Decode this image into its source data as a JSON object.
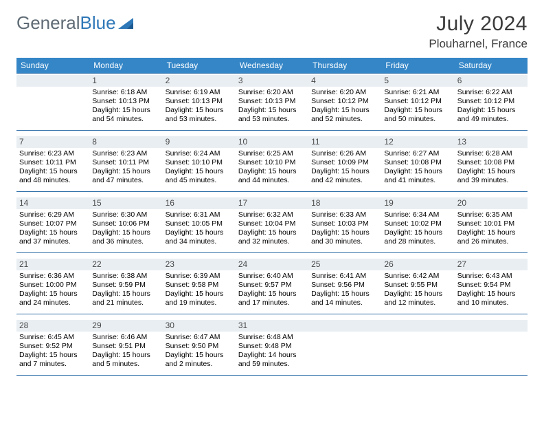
{
  "logo": {
    "part1": "General",
    "part2": "Blue"
  },
  "title": "July 2024",
  "location": "Plouharnel, France",
  "title_color": "#3b3b3b",
  "header_bg": "#3486c7",
  "header_fg": "#ffffff",
  "cell_num_bg": "#e9eef2",
  "cell_num_fg": "#4a4a4a",
  "border_color": "#2f6fa8",
  "text_color": "#000000",
  "dayHeaders": [
    "Sunday",
    "Monday",
    "Tuesday",
    "Wednesday",
    "Thursday",
    "Friday",
    "Saturday"
  ],
  "weeks": [
    [
      null,
      {
        "d": "1",
        "sr": "Sunrise: 6:18 AM",
        "ss": "Sunset: 10:13 PM",
        "dl1": "Daylight: 15 hours",
        "dl2": "and 54 minutes."
      },
      {
        "d": "2",
        "sr": "Sunrise: 6:19 AM",
        "ss": "Sunset: 10:13 PM",
        "dl1": "Daylight: 15 hours",
        "dl2": "and 53 minutes."
      },
      {
        "d": "3",
        "sr": "Sunrise: 6:20 AM",
        "ss": "Sunset: 10:13 PM",
        "dl1": "Daylight: 15 hours",
        "dl2": "and 53 minutes."
      },
      {
        "d": "4",
        "sr": "Sunrise: 6:20 AM",
        "ss": "Sunset: 10:12 PM",
        "dl1": "Daylight: 15 hours",
        "dl2": "and 52 minutes."
      },
      {
        "d": "5",
        "sr": "Sunrise: 6:21 AM",
        "ss": "Sunset: 10:12 PM",
        "dl1": "Daylight: 15 hours",
        "dl2": "and 50 minutes."
      },
      {
        "d": "6",
        "sr": "Sunrise: 6:22 AM",
        "ss": "Sunset: 10:12 PM",
        "dl1": "Daylight: 15 hours",
        "dl2": "and 49 minutes."
      }
    ],
    [
      {
        "d": "7",
        "sr": "Sunrise: 6:23 AM",
        "ss": "Sunset: 10:11 PM",
        "dl1": "Daylight: 15 hours",
        "dl2": "and 48 minutes."
      },
      {
        "d": "8",
        "sr": "Sunrise: 6:23 AM",
        "ss": "Sunset: 10:11 PM",
        "dl1": "Daylight: 15 hours",
        "dl2": "and 47 minutes."
      },
      {
        "d": "9",
        "sr": "Sunrise: 6:24 AM",
        "ss": "Sunset: 10:10 PM",
        "dl1": "Daylight: 15 hours",
        "dl2": "and 45 minutes."
      },
      {
        "d": "10",
        "sr": "Sunrise: 6:25 AM",
        "ss": "Sunset: 10:10 PM",
        "dl1": "Daylight: 15 hours",
        "dl2": "and 44 minutes."
      },
      {
        "d": "11",
        "sr": "Sunrise: 6:26 AM",
        "ss": "Sunset: 10:09 PM",
        "dl1": "Daylight: 15 hours",
        "dl2": "and 42 minutes."
      },
      {
        "d": "12",
        "sr": "Sunrise: 6:27 AM",
        "ss": "Sunset: 10:08 PM",
        "dl1": "Daylight: 15 hours",
        "dl2": "and 41 minutes."
      },
      {
        "d": "13",
        "sr": "Sunrise: 6:28 AM",
        "ss": "Sunset: 10:08 PM",
        "dl1": "Daylight: 15 hours",
        "dl2": "and 39 minutes."
      }
    ],
    [
      {
        "d": "14",
        "sr": "Sunrise: 6:29 AM",
        "ss": "Sunset: 10:07 PM",
        "dl1": "Daylight: 15 hours",
        "dl2": "and 37 minutes."
      },
      {
        "d": "15",
        "sr": "Sunrise: 6:30 AM",
        "ss": "Sunset: 10:06 PM",
        "dl1": "Daylight: 15 hours",
        "dl2": "and 36 minutes."
      },
      {
        "d": "16",
        "sr": "Sunrise: 6:31 AM",
        "ss": "Sunset: 10:05 PM",
        "dl1": "Daylight: 15 hours",
        "dl2": "and 34 minutes."
      },
      {
        "d": "17",
        "sr": "Sunrise: 6:32 AM",
        "ss": "Sunset: 10:04 PM",
        "dl1": "Daylight: 15 hours",
        "dl2": "and 32 minutes."
      },
      {
        "d": "18",
        "sr": "Sunrise: 6:33 AM",
        "ss": "Sunset: 10:03 PM",
        "dl1": "Daylight: 15 hours",
        "dl2": "and 30 minutes."
      },
      {
        "d": "19",
        "sr": "Sunrise: 6:34 AM",
        "ss": "Sunset: 10:02 PM",
        "dl1": "Daylight: 15 hours",
        "dl2": "and 28 minutes."
      },
      {
        "d": "20",
        "sr": "Sunrise: 6:35 AM",
        "ss": "Sunset: 10:01 PM",
        "dl1": "Daylight: 15 hours",
        "dl2": "and 26 minutes."
      }
    ],
    [
      {
        "d": "21",
        "sr": "Sunrise: 6:36 AM",
        "ss": "Sunset: 10:00 PM",
        "dl1": "Daylight: 15 hours",
        "dl2": "and 24 minutes."
      },
      {
        "d": "22",
        "sr": "Sunrise: 6:38 AM",
        "ss": "Sunset: 9:59 PM",
        "dl1": "Daylight: 15 hours",
        "dl2": "and 21 minutes."
      },
      {
        "d": "23",
        "sr": "Sunrise: 6:39 AM",
        "ss": "Sunset: 9:58 PM",
        "dl1": "Daylight: 15 hours",
        "dl2": "and 19 minutes."
      },
      {
        "d": "24",
        "sr": "Sunrise: 6:40 AM",
        "ss": "Sunset: 9:57 PM",
        "dl1": "Daylight: 15 hours",
        "dl2": "and 17 minutes."
      },
      {
        "d": "25",
        "sr": "Sunrise: 6:41 AM",
        "ss": "Sunset: 9:56 PM",
        "dl1": "Daylight: 15 hours",
        "dl2": "and 14 minutes."
      },
      {
        "d": "26",
        "sr": "Sunrise: 6:42 AM",
        "ss": "Sunset: 9:55 PM",
        "dl1": "Daylight: 15 hours",
        "dl2": "and 12 minutes."
      },
      {
        "d": "27",
        "sr": "Sunrise: 6:43 AM",
        "ss": "Sunset: 9:54 PM",
        "dl1": "Daylight: 15 hours",
        "dl2": "and 10 minutes."
      }
    ],
    [
      {
        "d": "28",
        "sr": "Sunrise: 6:45 AM",
        "ss": "Sunset: 9:52 PM",
        "dl1": "Daylight: 15 hours",
        "dl2": "and 7 minutes."
      },
      {
        "d": "29",
        "sr": "Sunrise: 6:46 AM",
        "ss": "Sunset: 9:51 PM",
        "dl1": "Daylight: 15 hours",
        "dl2": "and 5 minutes."
      },
      {
        "d": "30",
        "sr": "Sunrise: 6:47 AM",
        "ss": "Sunset: 9:50 PM",
        "dl1": "Daylight: 15 hours",
        "dl2": "and 2 minutes."
      },
      {
        "d": "31",
        "sr": "Sunrise: 6:48 AM",
        "ss": "Sunset: 9:48 PM",
        "dl1": "Daylight: 14 hours",
        "dl2": "and 59 minutes."
      },
      null,
      null,
      null
    ]
  ]
}
